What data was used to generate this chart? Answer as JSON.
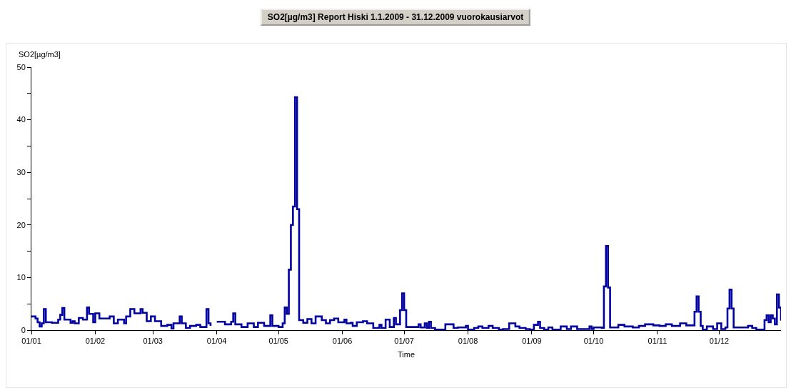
{
  "chart_data": {
    "type": "step",
    "title": "SO2[µg/m3] Report Hiski 1.1.2009 - 31.12.2009 vuorokausiarvot",
    "xlabel": "Time",
    "ylabel": "SO2[µg/m3]",
    "x": [
      "2009-01-01",
      "2009-01-03",
      "2009-01-04",
      "2009-01-05",
      "2009-01-06",
      "2009-01-07",
      "2009-01-08",
      "2009-01-11",
      "2009-01-14",
      "2009-01-15",
      "2009-01-16",
      "2009-01-17",
      "2009-01-20",
      "2009-01-21",
      "2009-01-22",
      "2009-01-24",
      "2009-01-26",
      "2009-01-28",
      "2009-01-29",
      "2009-01-31",
      "2009-02-01",
      "2009-02-03",
      "2009-02-08",
      "2009-02-10",
      "2009-02-12",
      "2009-02-15",
      "2009-02-16",
      "2009-02-18",
      "2009-02-20",
      "2009-02-23",
      "2009-02-24",
      "2009-02-26",
      "2009-02-28",
      "2009-03-02",
      "2009-03-05",
      "2009-03-08",
      "2009-03-10",
      "2009-03-11",
      "2009-03-14",
      "2009-03-15",
      "2009-03-17",
      "2009-03-19",
      "2009-03-22",
      "2009-03-24",
      "2009-03-27",
      "2009-03-28",
      "2009-03-29",
      "2009-03-30",
      "2009-04-01",
      "2009-04-05",
      "2009-04-08",
      "2009-04-09",
      "2009-04-10",
      "2009-04-13",
      "2009-04-16",
      "2009-04-19",
      "2009-04-21",
      "2009-04-24",
      "2009-04-27",
      "2009-04-28",
      "2009-05-01",
      "2009-05-03",
      "2009-05-04",
      "2009-05-05",
      "2009-05-06",
      "2009-05-07",
      "2009-05-08",
      "2009-05-09",
      "2009-05-10",
      "2009-05-11",
      "2009-05-13",
      "2009-05-15",
      "2009-05-17",
      "2009-05-19",
      "2009-05-22",
      "2009-05-24",
      "2009-05-26",
      "2009-05-28",
      "2009-05-30",
      "2009-06-02",
      "2009-06-03",
      "2009-06-05",
      "2009-06-06",
      "2009-06-08",
      "2009-06-11",
      "2009-06-13",
      "2009-06-16",
      "2009-06-19",
      "2009-06-20",
      "2009-06-22",
      "2009-06-24",
      "2009-06-26",
      "2009-06-27",
      "2009-06-29",
      "2009-06-30",
      "2009-07-01",
      "2009-07-02",
      "2009-07-08",
      "2009-07-09",
      "2009-07-11",
      "2009-07-12",
      "2009-07-13",
      "2009-07-14",
      "2009-07-16",
      "2009-07-21",
      "2009-07-25",
      "2009-07-27",
      "2009-07-31",
      "2009-08-01",
      "2009-08-04",
      "2009-08-06",
      "2009-08-08",
      "2009-08-11",
      "2009-08-13",
      "2009-08-16",
      "2009-08-18",
      "2009-08-21",
      "2009-08-24",
      "2009-08-26",
      "2009-08-29",
      "2009-08-31",
      "2009-09-02",
      "2009-09-04",
      "2009-09-05",
      "2009-09-07",
      "2009-09-09",
      "2009-09-11",
      "2009-09-15",
      "2009-09-18",
      "2009-09-20",
      "2009-09-23",
      "2009-09-29",
      "2009-09-30",
      "2009-10-01",
      "2009-10-05",
      "2009-10-06",
      "2009-10-07",
      "2009-10-08",
      "2009-10-09",
      "2009-10-13",
      "2009-10-16",
      "2009-10-20",
      "2009-10-23",
      "2009-10-26",
      "2009-10-30",
      "2009-11-02",
      "2009-11-05",
      "2009-11-08",
      "2009-11-12",
      "2009-11-15",
      "2009-11-19",
      "2009-11-20",
      "2009-11-21",
      "2009-11-22",
      "2009-11-23",
      "2009-11-25",
      "2009-11-28",
      "2009-11-30",
      "2009-12-02",
      "2009-12-04",
      "2009-12-05",
      "2009-12-06",
      "2009-12-07",
      "2009-12-08",
      "2009-12-15",
      "2009-12-17",
      "2009-12-19",
      "2009-12-23",
      "2009-12-24",
      "2009-12-25",
      "2009-12-26",
      "2009-12-27",
      "2009-12-28",
      "2009-12-29",
      "2009-12-30",
      "2009-12-31"
    ],
    "series": [
      {
        "color": "#0000a0",
        "values": [
          2.6,
          2.2,
          1.5,
          0.7,
          1.3,
          4.0,
          1.5,
          1.4,
          2.0,
          2.9,
          4.2,
          2.0,
          1.4,
          1.7,
          1.3,
          2.3,
          2.0,
          4.3,
          3.1,
          1.5,
          3.2,
          2.2,
          2.6,
          1.3,
          2.0,
          1.3,
          2.6,
          4.0,
          3.2,
          4.0,
          3.3,
          1.7,
          2.6,
          1.7,
          0.8,
          1.0,
          0.3,
          1.3,
          2.6,
          1.3,
          0.4,
          0.8,
          1.0,
          0.6,
          4.0,
          1.3,
          0.8,
          null,
          1.6,
          1.1,
          1.6,
          3.2,
          1.1,
          0.6,
          1.3,
          0.6,
          1.4,
          0.8,
          2.8,
          0.8,
          0.6,
          1.3,
          4.3,
          3.1,
          11.5,
          20.0,
          23.5,
          44.3,
          23.0,
          1.9,
          1.4,
          2.1,
          1.3,
          2.6,
          1.9,
          1.3,
          1.9,
          2.2,
          1.5,
          2.0,
          1.3,
          1.4,
          0.8,
          1.5,
          1.7,
          1.3,
          0.4,
          1.0,
          0.4,
          2.0,
          0.6,
          2.3,
          1.1,
          3.8,
          7.0,
          3.8,
          0.6,
          1.1,
          0.5,
          1.3,
          0.4,
          1.6,
          0.4,
          0.1,
          1.1,
          0.4,
          0.5,
          0.8,
          0.1,
          0.4,
          0.7,
          0.4,
          0.8,
          0.4,
          0.1,
          0.2,
          1.3,
          0.7,
          0.4,
          0.2,
          0.1,
          1.0,
          1.6,
          0.4,
          0.1,
          0.5,
          0.1,
          0.7,
          0.2,
          0.7,
          0.2,
          0.7,
          0.2,
          0.5,
          0.4,
          8.3,
          16.0,
          8.1,
          0.5,
          1.0,
          0.7,
          0.5,
          0.8,
          1.1,
          0.9,
          0.8,
          1.1,
          0.8,
          1.3,
          0.9,
          3.5,
          6.4,
          3.5,
          0.8,
          0.1,
          0.7,
          0.2,
          1.3,
          0.2,
          0.5,
          4.1,
          7.7,
          4.1,
          0.5,
          0.8,
          0.4,
          0.1,
          1.9,
          2.8,
          1.5,
          2.8,
          2.2,
          1.1,
          6.8,
          4.3,
          1.8
        ]
      }
    ],
    "xlim": [
      "2009-01-01",
      "2009-12-31"
    ],
    "xticks": [
      {
        "value": "2009-01-01",
        "label": "01/01"
      },
      {
        "value": "2009-02-01",
        "label": "01/02"
      },
      {
        "value": "2009-03-01",
        "label": "01/03"
      },
      {
        "value": "2009-04-01",
        "label": "01/04"
      },
      {
        "value": "2009-05-01",
        "label": "01/05"
      },
      {
        "value": "2009-06-01",
        "label": "01/06"
      },
      {
        "value": "2009-07-01",
        "label": "01/07"
      },
      {
        "value": "2009-08-01",
        "label": "01/08"
      },
      {
        "value": "2009-09-01",
        "label": "01/09"
      },
      {
        "value": "2009-10-01",
        "label": "01/10"
      },
      {
        "value": "2009-11-01",
        "label": "01/11"
      },
      {
        "value": "2009-12-01",
        "label": "01/12"
      }
    ],
    "ylim": [
      0,
      50
    ],
    "yticks": [
      0,
      {
        "value": 5,
        "label": null
      },
      10,
      {
        "value": 15,
        "label": null
      },
      20,
      {
        "value": 25,
        "label": null
      },
      30,
      {
        "value": 35,
        "label": null
      },
      40,
      {
        "value": 45,
        "label": null
      },
      50
    ],
    "grid": false,
    "marker": "none",
    "line_style": "solid"
  }
}
